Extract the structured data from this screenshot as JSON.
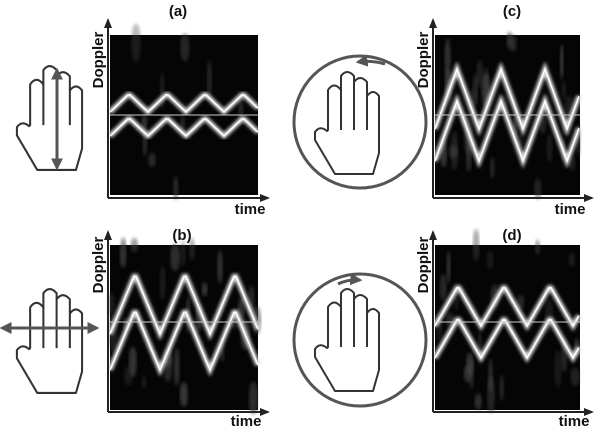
{
  "panels": [
    {
      "label": "(a)",
      "y_label": "Doppler",
      "x_label": "time"
    },
    {
      "label": "(b)",
      "y_label": "Doppler",
      "x_label": "time"
    },
    {
      "label": "(c)",
      "y_label": "Doppler",
      "x_label": "time"
    },
    {
      "label": "(d)",
      "y_label": "Doppler",
      "x_label": "time"
    }
  ]
}
